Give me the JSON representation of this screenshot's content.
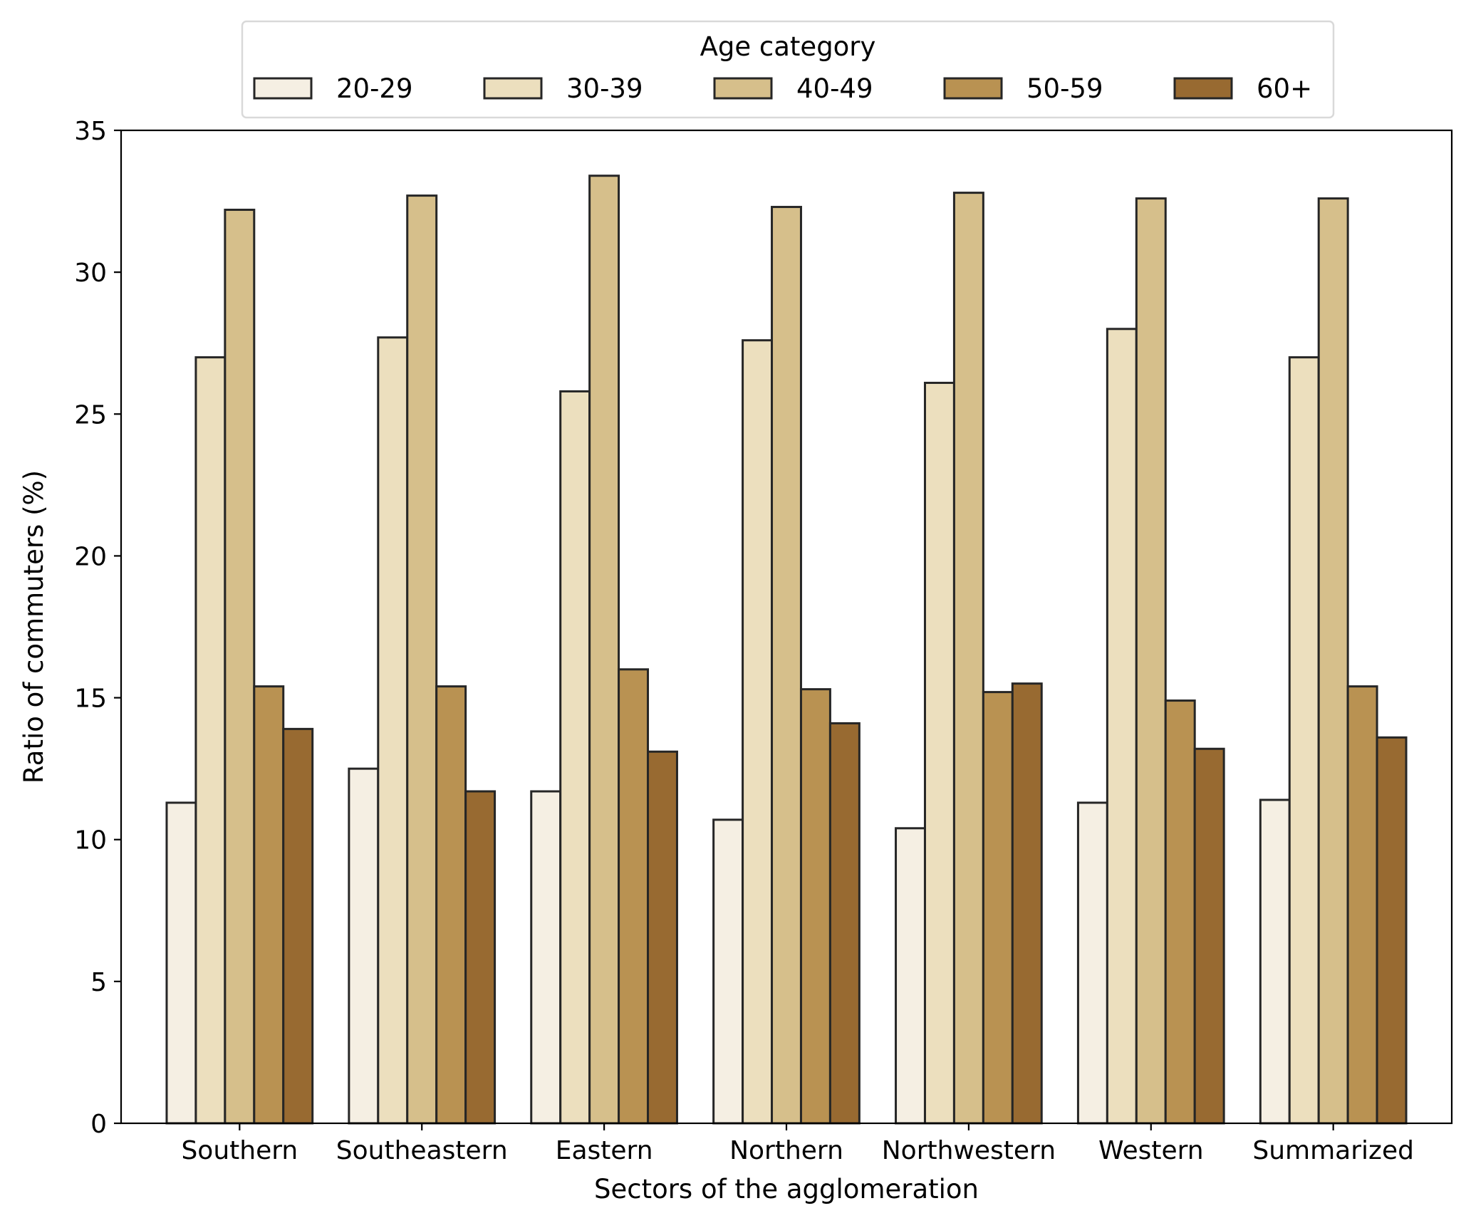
{
  "chart_data": {
    "type": "bar",
    "title": "",
    "xlabel": "Sectors of the agglomeration",
    "ylabel": "Ratio of commuters (%)",
    "ylim": [
      0,
      35
    ],
    "yticks": [
      0,
      5,
      10,
      15,
      20,
      25,
      30,
      35
    ],
    "ytick_labels": [
      "0",
      "5",
      "10",
      "15",
      "20",
      "25",
      "30",
      "35"
    ],
    "grid": false,
    "legend": {
      "title": "Age category",
      "placement": "top-center, above plot"
    },
    "categories": [
      "Southern",
      "Southeastern",
      "Eastern",
      "Northern",
      "Northwestern",
      "Western",
      "Summarized"
    ],
    "series": [
      {
        "name": "20-29",
        "color": "#f5efe3",
        "values": [
          11.3,
          12.5,
          11.7,
          10.7,
          10.4,
          11.3,
          11.4
        ]
      },
      {
        "name": "30-39",
        "color": "#ecdfbe",
        "values": [
          27.0,
          27.7,
          25.8,
          27.6,
          26.1,
          28.0,
          27.0
        ]
      },
      {
        "name": "40-49",
        "color": "#d6bf8b",
        "values": [
          32.2,
          32.7,
          33.4,
          32.3,
          32.8,
          32.6,
          32.6
        ]
      },
      {
        "name": "50-59",
        "color": "#b99252",
        "values": [
          15.4,
          15.4,
          16.0,
          15.3,
          15.2,
          14.9,
          15.4
        ]
      },
      {
        "name": "60+",
        "color": "#986a31",
        "values": [
          13.9,
          11.7,
          13.1,
          14.1,
          15.5,
          13.2,
          13.6
        ]
      }
    ]
  }
}
